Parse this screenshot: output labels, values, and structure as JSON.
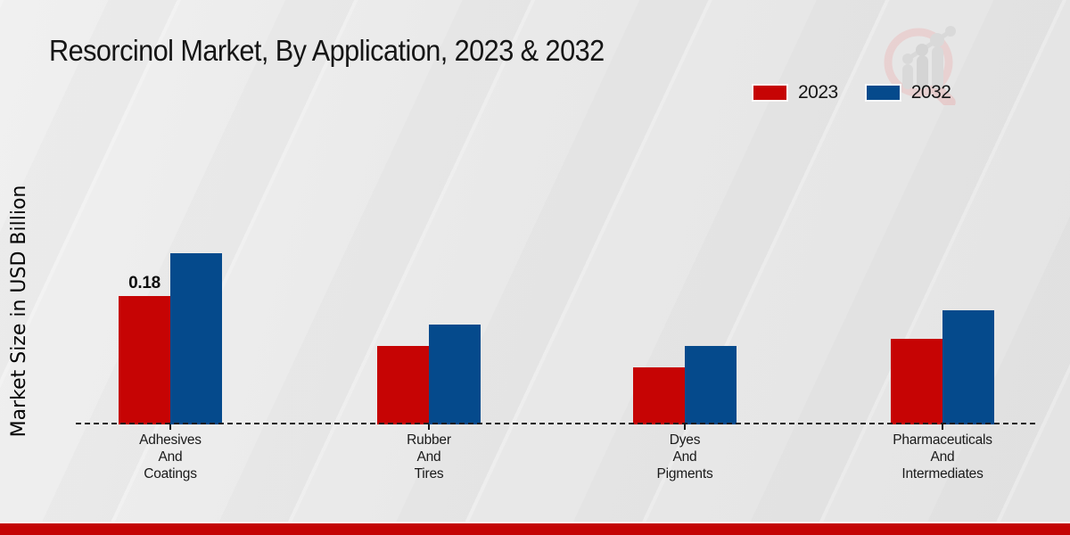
{
  "title": "Resorcinol Market, By Application, 2023 & 2032",
  "legend": [
    {
      "label": "2023",
      "color": "#c60404"
    },
    {
      "label": "2032",
      "color": "#054a8c"
    }
  ],
  "colors": {
    "bar_2023": "#c60404",
    "bar_2032": "#054a8c",
    "footer_strip": "#c40404",
    "background": "#e9e9e9",
    "baseline": "#1c1c1c"
  },
  "icons": {
    "logo": "magnifier-bar-chart-watermark-logo"
  },
  "chart_data": {
    "type": "bar",
    "title": "Resorcinol Market, By Application, 2023 & 2032",
    "xlabel": "",
    "ylabel": "Market Size in USD Billion",
    "ylim": [
      0,
      0.25
    ],
    "grid": false,
    "legend_position": "top-right",
    "baseline_style": "dashed",
    "categories": [
      "Adhesives And Coatings",
      "Rubber And Tires",
      "Dyes And Pigments",
      "Pharmaceuticals And Intermediates"
    ],
    "categories_lines": [
      [
        "Adhesives",
        "And",
        "Coatings"
      ],
      [
        "Rubber",
        "And",
        "Tires"
      ],
      [
        "Dyes",
        "And",
        "Pigments"
      ],
      [
        "Pharmaceuticals",
        "And",
        "Intermediates"
      ]
    ],
    "series": [
      {
        "name": "2023",
        "color": "#c60404",
        "values": [
          0.18,
          0.11,
          0.08,
          0.12
        ]
      },
      {
        "name": "2032",
        "color": "#054a8c",
        "values": [
          0.24,
          0.14,
          0.11,
          0.16
        ]
      }
    ],
    "data_labels": [
      {
        "series_index": 0,
        "category_index": 0,
        "text": "0.18"
      }
    ]
  }
}
